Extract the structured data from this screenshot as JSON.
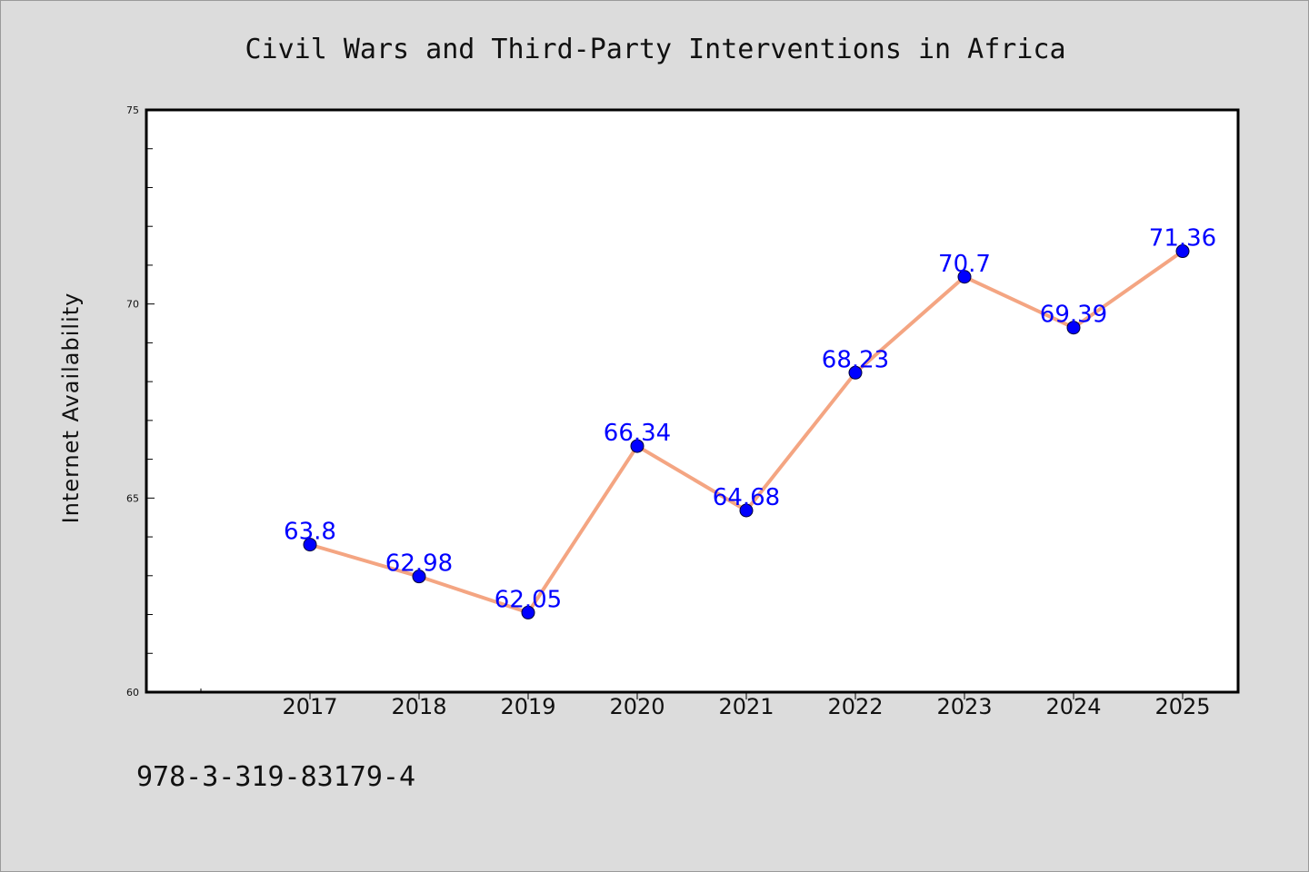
{
  "chart_data": {
    "type": "line",
    "title": "Civil Wars and Third-Party Interventions in Africa",
    "xlabel": "",
    "ylabel": "Internet Availability",
    "x": [
      "2017",
      "2018",
      "2019",
      "2020",
      "2021",
      "2022",
      "2023",
      "2024",
      "2025"
    ],
    "series": [
      {
        "values": [
          63.8,
          62.98,
          62.05,
          66.34,
          64.68,
          68.23,
          70.7,
          69.39,
          71.36
        ],
        "labels": [
          "63.8",
          "62.98",
          "62.05",
          "66.34",
          "64.68",
          "68.23",
          "70.7",
          "69.39",
          "71.36"
        ]
      }
    ],
    "ylim": [
      60,
      75
    ],
    "yticks": [
      "60",
      "65",
      "70",
      "75"
    ],
    "grid": false,
    "legend": "none",
    "colors": {
      "line": "#f4a582",
      "marker": "#0000ff",
      "data_label": "#0000ff",
      "background": "#dcdcdc",
      "plot_area": "#ffffff"
    }
  },
  "footnote": "978-3-319-83179-4"
}
